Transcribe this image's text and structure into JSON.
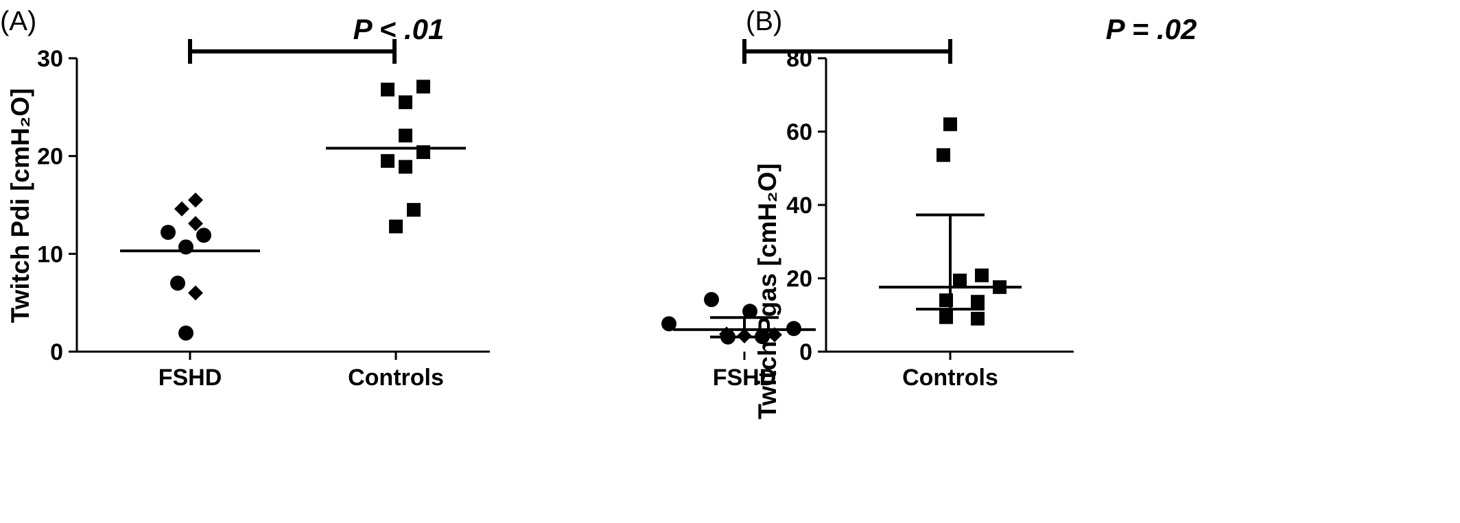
{
  "chart_data": [
    {
      "panel": "(A)",
      "type": "scatter",
      "ylabel": "Twitch Pdi [cmH₂O]",
      "ylim": [
        0,
        30
      ],
      "yticks": [
        0,
        10,
        20,
        30
      ],
      "categories": [
        "FSHD",
        "Controls"
      ],
      "significance": "P < .01",
      "groups": [
        {
          "category": "FSHD",
          "center_line": 10.3,
          "points": [
            {
              "y": 15.5,
              "shape": "diamond"
            },
            {
              "y": 14.6,
              "shape": "diamond"
            },
            {
              "y": 13.1,
              "shape": "diamond"
            },
            {
              "y": 12.2,
              "shape": "circle"
            },
            {
              "y": 11.9,
              "shape": "circle"
            },
            {
              "y": 10.7,
              "shape": "circle"
            },
            {
              "y": 7.0,
              "shape": "circle"
            },
            {
              "y": 6.0,
              "shape": "diamond"
            },
            {
              "y": 1.9,
              "shape": "circle"
            }
          ]
        },
        {
          "category": "Controls",
          "center_line": 20.8,
          "points": [
            {
              "y": 27.1,
              "shape": "square"
            },
            {
              "y": 26.8,
              "shape": "square"
            },
            {
              "y": 25.5,
              "shape": "square"
            },
            {
              "y": 22.1,
              "shape": "square"
            },
            {
              "y": 20.4,
              "shape": "square"
            },
            {
              "y": 19.5,
              "shape": "square"
            },
            {
              "y": 18.9,
              "shape": "square"
            },
            {
              "y": 14.5,
              "shape": "square"
            },
            {
              "y": 12.8,
              "shape": "square"
            }
          ]
        }
      ]
    },
    {
      "panel": "(B)",
      "type": "scatter",
      "ylabel": "Twitch Pgas [cmH₂O]",
      "ylim": [
        0,
        80
      ],
      "yticks": [
        0,
        20,
        40,
        60,
        80
      ],
      "categories": [
        "FSHD",
        "Controls"
      ],
      "significance": "P = .02",
      "groups": [
        {
          "category": "FSHD",
          "center_line": 6.0,
          "error_bar": [
            4.0,
            9.3
          ],
          "points": [
            {
              "y": 14.2,
              "shape": "circle"
            },
            {
              "y": 11.0,
              "shape": "circle"
            },
            {
              "y": 7.6,
              "shape": "circle"
            },
            {
              "y": 6.3,
              "shape": "circle"
            },
            {
              "y": 4.8,
              "shape": "diamond"
            },
            {
              "y": 4.3,
              "shape": "diamond"
            },
            {
              "y": 4.0,
              "shape": "circle"
            },
            {
              "y": 4.1,
              "shape": "circle"
            },
            {
              "y": 4.6,
              "shape": "diamond"
            }
          ]
        },
        {
          "category": "Controls",
          "center_line": 17.6,
          "error_bar": [
            11.6,
            37.3
          ],
          "points": [
            {
              "y": 62.0,
              "shape": "square"
            },
            {
              "y": 53.6,
              "shape": "square"
            },
            {
              "y": 20.8,
              "shape": "square"
            },
            {
              "y": 19.4,
              "shape": "square"
            },
            {
              "y": 17.6,
              "shape": "square"
            },
            {
              "y": 14.0,
              "shape": "square"
            },
            {
              "y": 13.6,
              "shape": "square"
            },
            {
              "y": 9.4,
              "shape": "square"
            },
            {
              "y": 9.0,
              "shape": "square"
            }
          ]
        }
      ]
    }
  ]
}
